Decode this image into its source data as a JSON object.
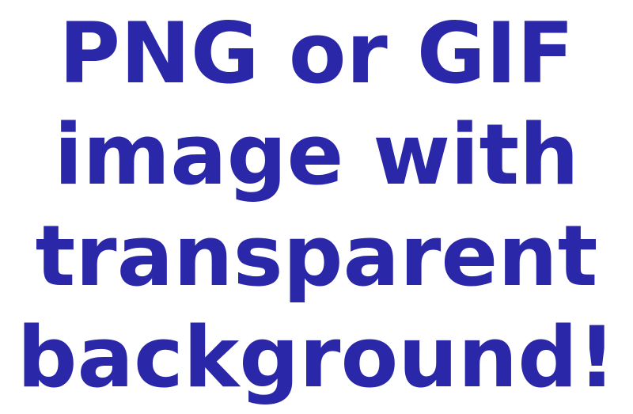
{
  "text_color": "#2a27a8",
  "lines": [
    "PNG or GIF",
    "image with",
    "transparent",
    "background!"
  ]
}
